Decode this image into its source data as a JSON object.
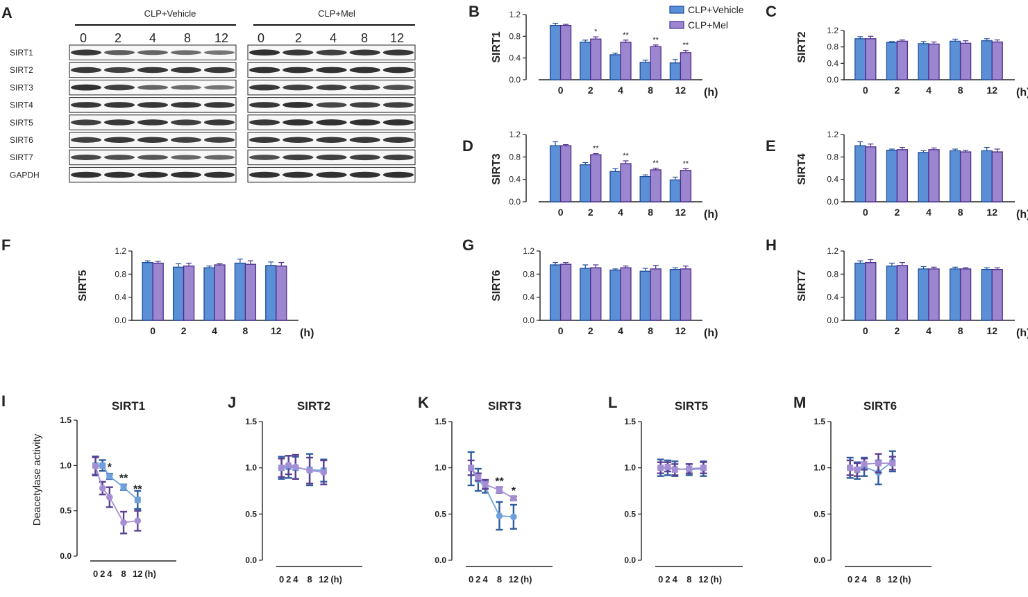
{
  "colors": {
    "vehicle_fill": "#5b8fd6",
    "vehicle_edge": "#1f4e9a",
    "mel_fill": "#9b86cf",
    "mel_edge": "#4b2d8a",
    "line_vehicle": "#6fa0dc",
    "line_mel": "#a58ed4",
    "err_vehicle": "#2f5d9e",
    "err_mel": "#5a3f92",
    "text": "#222222",
    "blot_band": "#1e1e1e",
    "blot_bg": "#f7f7f7"
  },
  "blot": {
    "panel_letter": "A",
    "groups": [
      {
        "title": "CLP+Vehicle",
        "lanes": [
          "0",
          "2",
          "4",
          "8",
          "12"
        ]
      },
      {
        "title": "CLP+Mel",
        "lanes": [
          "0",
          "2",
          "4",
          "8",
          "12"
        ]
      }
    ],
    "rows": [
      "SIRT1",
      "SIRT2",
      "SIRT3",
      "SIRT4",
      "SIRT5",
      "SIRT6",
      "SIRT7",
      "GAPDH"
    ],
    "band_intensity": [
      [
        [
          0.9,
          0.65,
          0.6,
          0.55,
          0.5
        ],
        [
          0.95,
          0.9,
          0.85,
          0.9,
          0.9
        ]
      ],
      [
        [
          0.9,
          0.85,
          0.9,
          0.9,
          0.9
        ],
        [
          0.95,
          0.95,
          0.95,
          0.95,
          0.95
        ]
      ],
      [
        [
          0.95,
          0.85,
          0.6,
          0.55,
          0.5
        ],
        [
          0.9,
          0.85,
          0.85,
          0.8,
          0.75
        ]
      ],
      [
        [
          0.9,
          0.9,
          0.9,
          0.9,
          0.9
        ],
        [
          0.9,
          0.95,
          0.8,
          0.85,
          0.85
        ]
      ],
      [
        [
          0.85,
          0.9,
          0.9,
          0.85,
          0.9
        ],
        [
          0.9,
          0.95,
          0.95,
          0.95,
          0.95
        ]
      ],
      [
        [
          0.85,
          0.9,
          0.9,
          0.85,
          0.85
        ],
        [
          0.9,
          0.9,
          0.9,
          0.9,
          0.9
        ]
      ],
      [
        [
          0.8,
          0.75,
          0.7,
          0.6,
          0.6
        ],
        [
          0.75,
          0.85,
          0.85,
          0.85,
          0.85
        ]
      ],
      [
        [
          0.95,
          0.95,
          0.95,
          0.95,
          0.95
        ],
        [
          0.95,
          0.95,
          0.95,
          0.95,
          0.95
        ]
      ]
    ]
  },
  "chart_data": [
    {
      "panel": "B",
      "type": "bar",
      "ylabel": "SIRT1",
      "ylim": [
        0,
        1.2
      ],
      "yticks": [
        "0.0",
        "0.4",
        "0.8",
        "1.2"
      ],
      "categories": [
        "0",
        "2",
        "4",
        "8",
        "12"
      ],
      "x_unit": "(h)",
      "legend": [
        "CLP+Vehicle",
        "CLP+Mel"
      ],
      "series": [
        {
          "name": "CLP+Vehicle",
          "values": [
            1.0,
            0.69,
            0.46,
            0.32,
            0.31
          ],
          "errors": [
            0.04,
            0.04,
            0.03,
            0.04,
            0.06
          ]
        },
        {
          "name": "CLP+Mel",
          "values": [
            1.0,
            0.75,
            0.69,
            0.61,
            0.5
          ],
          "errors": [
            0.02,
            0.04,
            0.04,
            0.03,
            0.04
          ]
        }
      ],
      "significance": [
        "",
        "*",
        "**",
        "**",
        "**"
      ]
    },
    {
      "panel": "C",
      "type": "bar",
      "ylabel": "SIRT2",
      "ylim": [
        0,
        1.2
      ],
      "yticks": [
        "0.0",
        "0.4",
        "0.8",
        "1.2"
      ],
      "categories": [
        "0",
        "2",
        "4",
        "8",
        "12"
      ],
      "x_unit": "(h)",
      "series": [
        {
          "name": "CLP+Vehicle",
          "values": [
            1.0,
            0.91,
            0.88,
            0.94,
            0.95
          ],
          "errors": [
            0.05,
            0.02,
            0.05,
            0.05,
            0.05
          ]
        },
        {
          "name": "CLP+Mel",
          "values": [
            1.0,
            0.94,
            0.87,
            0.89,
            0.92
          ],
          "errors": [
            0.06,
            0.03,
            0.05,
            0.06,
            0.05
          ]
        }
      ],
      "significance": [
        "",
        "",
        "",
        "",
        ""
      ]
    },
    {
      "panel": "D",
      "type": "bar",
      "ylabel": "SIRT3",
      "ylim": [
        0,
        1.2
      ],
      "yticks": [
        "0.0",
        "0.4",
        "0.8",
        "1.2"
      ],
      "categories": [
        "0",
        "2",
        "4",
        "8",
        "12"
      ],
      "x_unit": "(h)",
      "series": [
        {
          "name": "CLP+Vehicle",
          "values": [
            1.0,
            0.66,
            0.54,
            0.45,
            0.39
          ],
          "errors": [
            0.07,
            0.04,
            0.05,
            0.03,
            0.05
          ]
        },
        {
          "name": "CLP+Mel",
          "values": [
            1.0,
            0.84,
            0.68,
            0.57,
            0.56
          ],
          "errors": [
            0.02,
            0.02,
            0.05,
            0.03,
            0.03
          ]
        }
      ],
      "significance": [
        "",
        "**",
        "**",
        "**",
        "**"
      ]
    },
    {
      "panel": "E",
      "type": "bar",
      "ylabel": "SIRT4",
      "ylim": [
        0,
        1.2
      ],
      "yticks": [
        "0.0",
        "0.4",
        "0.8",
        "1.2"
      ],
      "categories": [
        "0",
        "2",
        "4",
        "8",
        "12"
      ],
      "x_unit": "(h)",
      "series": [
        {
          "name": "CLP+Vehicle",
          "values": [
            1.0,
            0.92,
            0.88,
            0.91,
            0.91
          ],
          "errors": [
            0.07,
            0.02,
            0.03,
            0.03,
            0.06
          ]
        },
        {
          "name": "CLP+Mel",
          "values": [
            0.98,
            0.93,
            0.93,
            0.89,
            0.89
          ],
          "errors": [
            0.05,
            0.04,
            0.03,
            0.03,
            0.05
          ]
        }
      ],
      "significance": [
        "",
        "",
        "",
        "",
        ""
      ]
    },
    {
      "panel": "F",
      "type": "bar",
      "ylabel": "SIRT5",
      "ylim": [
        0,
        1.2
      ],
      "yticks": [
        "0.0",
        "0.4",
        "0.8",
        "1.2"
      ],
      "categories": [
        "0",
        "2",
        "4",
        "8",
        "12"
      ],
      "x_unit": "(h)",
      "series": [
        {
          "name": "CLP+Vehicle",
          "values": [
            1.0,
            0.92,
            0.91,
            0.99,
            0.95
          ],
          "errors": [
            0.03,
            0.06,
            0.03,
            0.07,
            0.06
          ]
        },
        {
          "name": "CLP+Mel",
          "values": [
            0.99,
            0.94,
            0.96,
            0.97,
            0.94
          ],
          "errors": [
            0.03,
            0.05,
            0.02,
            0.06,
            0.06
          ]
        }
      ],
      "significance": [
        "",
        "",
        "",
        "",
        ""
      ]
    },
    {
      "panel": "G",
      "type": "bar",
      "ylabel": "SIRT6",
      "ylim": [
        0,
        1.2
      ],
      "yticks": [
        "0.0",
        "0.4",
        "0.8",
        "1.2"
      ],
      "categories": [
        "0",
        "2",
        "4",
        "8",
        "12"
      ],
      "x_unit": "(h)",
      "series": [
        {
          "name": "CLP+Vehicle",
          "values": [
            0.96,
            0.9,
            0.87,
            0.85,
            0.88
          ],
          "errors": [
            0.04,
            0.06,
            0.02,
            0.05,
            0.03
          ]
        },
        {
          "name": "CLP+Mel",
          "values": [
            0.97,
            0.91,
            0.91,
            0.89,
            0.89
          ],
          "errors": [
            0.03,
            0.05,
            0.03,
            0.06,
            0.05
          ]
        }
      ],
      "significance": [
        "",
        "",
        "",
        "",
        ""
      ]
    },
    {
      "panel": "H",
      "type": "bar",
      "ylabel": "SIRT7",
      "ylim": [
        0,
        1.2
      ],
      "yticks": [
        "0.0",
        "0.4",
        "0.8",
        "1.2"
      ],
      "categories": [
        "0",
        "2",
        "4",
        "8",
        "12"
      ],
      "x_unit": "(h)",
      "series": [
        {
          "name": "CLP+Vehicle",
          "values": [
            0.99,
            0.94,
            0.89,
            0.89,
            0.88
          ],
          "errors": [
            0.04,
            0.05,
            0.04,
            0.03,
            0.03
          ]
        },
        {
          "name": "CLP+Mel",
          "values": [
            1.0,
            0.95,
            0.89,
            0.89,
            0.88
          ],
          "errors": [
            0.05,
            0.05,
            0.03,
            0.02,
            0.03
          ]
        }
      ],
      "significance": [
        "",
        "",
        "",
        "",
        ""
      ]
    },
    {
      "panel": "I",
      "type": "line",
      "title": "SIRT1",
      "ylabel": "Deacetylase activity",
      "ylim": [
        0,
        1.5
      ],
      "yticks": [
        "0.0",
        "0.5",
        "1.0",
        "1.5"
      ],
      "x": [
        0,
        2,
        4,
        8,
        12
      ],
      "xlim": [
        -1.5,
        23
      ],
      "x_labels": [
        "0",
        "2",
        "4",
        "8",
        "12"
      ],
      "x_unit": "(h)",
      "series": [
        {
          "name": "CLP+Vehicle",
          "marker": "square",
          "values": [
            1.0,
            1.0,
            0.88,
            0.76,
            0.62
          ],
          "errors": [
            0.1,
            0.06,
            0.03,
            0.03,
            0.1
          ]
        },
        {
          "name": "CLP+Mel",
          "marker": "circle",
          "values": [
            0.99,
            0.75,
            0.65,
            0.37,
            0.39
          ],
          "errors": [
            0.1,
            0.07,
            0.11,
            0.12,
            0.11
          ]
        }
      ],
      "significance": [
        {
          "x": 4,
          "text": "*",
          "value": 0.98
        },
        {
          "x": 8,
          "text": "**",
          "value": 0.86
        },
        {
          "x": 12,
          "text": "**",
          "value": 0.74
        }
      ]
    },
    {
      "panel": "J",
      "type": "line",
      "title": "SIRT2",
      "ylim": [
        0,
        1.5
      ],
      "yticks": [
        "0.0",
        "0.5",
        "1.0",
        "1.5"
      ],
      "x": [
        0,
        2,
        4,
        8,
        12
      ],
      "xlim": [
        -1.5,
        23
      ],
      "x_labels": [
        "0",
        "2",
        "4",
        "8",
        "12"
      ],
      "x_unit": "(h)",
      "series": [
        {
          "name": "CLP+Vehicle",
          "marker": "square",
          "values": [
            1.0,
            1.01,
            1.0,
            0.98,
            0.97
          ],
          "errors": [
            0.12,
            0.12,
            0.12,
            0.17,
            0.12
          ]
        },
        {
          "name": "CLP+Mel",
          "marker": "circle",
          "values": [
            1.0,
            1.03,
            1.01,
            0.97,
            0.95
          ],
          "errors": [
            0.1,
            0.1,
            0.13,
            0.14,
            0.13
          ]
        }
      ],
      "significance": []
    },
    {
      "panel": "K",
      "type": "line",
      "title": "SIRT3",
      "ylim": [
        0,
        1.5
      ],
      "yticks": [
        "0.0",
        "0.5",
        "1.0",
        "1.5"
      ],
      "x": [
        0,
        2,
        4,
        8,
        12
      ],
      "xlim": [
        -1.5,
        23
      ],
      "x_labels": [
        "0",
        "2",
        "4",
        "8",
        "12"
      ],
      "x_unit": "(h)",
      "series": [
        {
          "name": "CLP+Vehicle",
          "marker": "circle",
          "values": [
            0.99,
            0.87,
            0.79,
            0.48,
            0.47
          ],
          "errors": [
            0.18,
            0.12,
            0.06,
            0.15,
            0.13
          ]
        },
        {
          "name": "CLP+Mel",
          "marker": "square",
          "values": [
            1.0,
            0.9,
            0.82,
            0.76,
            0.67
          ],
          "errors": [
            0.08,
            0.04,
            0.05,
            0.03,
            0.02
          ]
        }
      ],
      "significance": [
        {
          "x": 8,
          "text": "**",
          "value": 0.85
        },
        {
          "x": 12,
          "text": "*",
          "value": 0.75
        }
      ]
    },
    {
      "panel": "L",
      "type": "line",
      "title": "SIRT5",
      "ylim": [
        0,
        1.5
      ],
      "yticks": [
        "0.0",
        "0.5",
        "1.0",
        "1.5"
      ],
      "x": [
        0,
        2,
        4,
        8,
        12
      ],
      "xlim": [
        -1.5,
        23
      ],
      "x_labels": [
        "0",
        "2",
        "4",
        "8",
        "12"
      ],
      "x_unit": "(h)",
      "series": [
        {
          "name": "CLP+Vehicle",
          "marker": "circle",
          "values": [
            1.0,
            1.0,
            0.99,
            0.98,
            0.99
          ],
          "errors": [
            0.09,
            0.08,
            0.08,
            0.06,
            0.08
          ]
        },
        {
          "name": "CLP+Mel",
          "marker": "square",
          "values": [
            1.0,
            1.01,
            0.98,
            0.99,
            1.0
          ],
          "errors": [
            0.06,
            0.05,
            0.06,
            0.05,
            0.06
          ]
        }
      ],
      "significance": []
    },
    {
      "panel": "M",
      "type": "line",
      "title": "SIRT6",
      "ylim": [
        0,
        1.5
      ],
      "yticks": [
        "0.0",
        "0.5",
        "1.0",
        "1.5"
      ],
      "x": [
        0,
        2,
        4,
        8,
        12
      ],
      "xlim": [
        -1.5,
        23
      ],
      "x_labels": [
        "0",
        "2",
        "4",
        "8",
        "12"
      ],
      "x_unit": "(h)",
      "series": [
        {
          "name": "CLP+Vehicle",
          "marker": "circle",
          "values": [
            1.0,
            0.97,
            1.01,
            0.95,
            1.07
          ],
          "errors": [
            0.11,
            0.09,
            0.1,
            0.13,
            0.11
          ]
        },
        {
          "name": "CLP+Mel",
          "marker": "square",
          "values": [
            1.0,
            0.98,
            1.04,
            1.05,
            1.05
          ],
          "errors": [
            0.08,
            0.07,
            0.06,
            0.1,
            0.07
          ]
        }
      ],
      "significance": []
    }
  ]
}
